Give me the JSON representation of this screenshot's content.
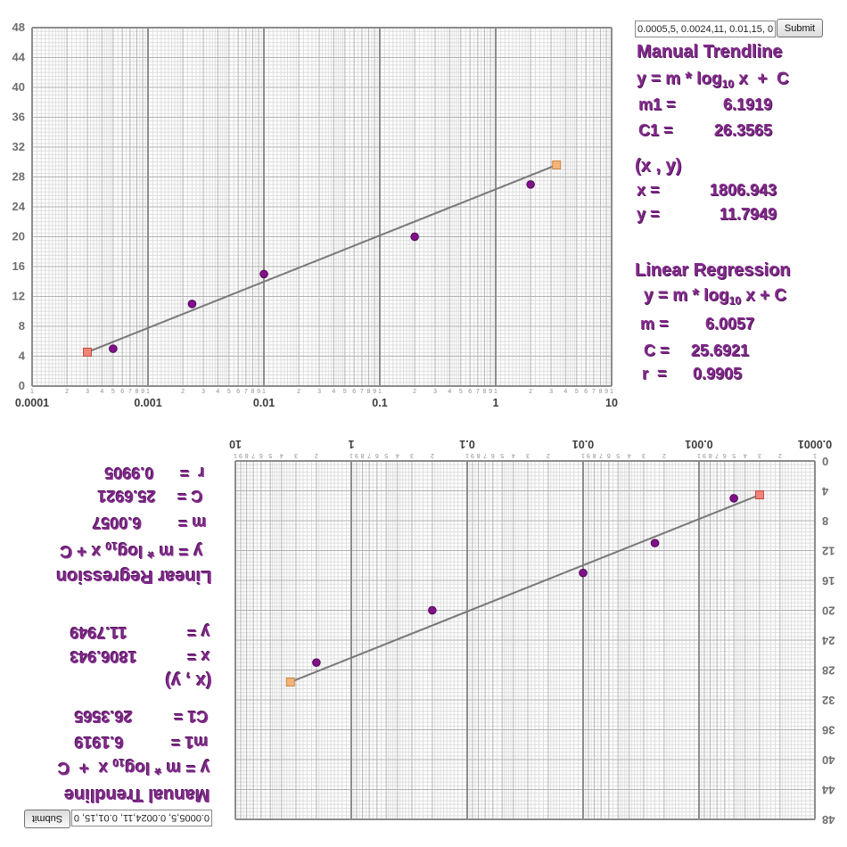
{
  "controls": {
    "input_value": "0.0005,5, 0.0024,11, 0.01,15, 0",
    "submit_label": "Submit"
  },
  "panel": {
    "manual": {
      "title": "Manual Trendline",
      "formula": {
        "pre": "y = m * log",
        "sub": "10",
        "post": " x  +  C"
      },
      "lines": [
        {
          "label": "m1 = ",
          "value": "6.1919"
        },
        {
          "label": "C1 = ",
          "value": "26.3565"
        }
      ]
    },
    "readout": {
      "title": "(x , y)",
      "lines": [
        {
          "label": "x = ",
          "value": "1806.943"
        },
        {
          "label": "y = ",
          "value": "11.7949"
        }
      ]
    },
    "regression": {
      "title": "Linear Regression",
      "formula": {
        "pre": "y = m * log",
        "sub": "10",
        "post": " x + C"
      },
      "lines": [
        {
          "label": "m = ",
          "value": "6.0057"
        },
        {
          "label": "C = ",
          "value": "25.6921"
        },
        {
          "label": "r  = ",
          "value": "0.9905"
        }
      ]
    }
  },
  "chart_data": {
    "type": "scatter",
    "x_scale": "log",
    "xlim": [
      0.0001,
      10
    ],
    "ylim": [
      0,
      48
    ],
    "y_tick_step": 4,
    "y_ticks": [
      0,
      4,
      8,
      12,
      16,
      20,
      24,
      28,
      32,
      36,
      40,
      44,
      48
    ],
    "x_decade_labels": [
      "0.0001",
      "0.001",
      "0.01",
      "0.1",
      "1",
      "10"
    ],
    "x_minor_tick_digits": [
      1,
      2,
      3,
      4,
      5,
      6,
      7,
      8,
      9
    ],
    "points": [
      [
        0.0005,
        5
      ],
      [
        0.0024,
        11
      ],
      [
        0.01,
        15
      ],
      [
        0.2,
        20
      ],
      [
        2,
        27
      ]
    ],
    "trendline": {
      "m": 6.1919,
      "C": 26.3565,
      "x_start": 0.0003,
      "x_end": 3.35
    },
    "regression": {
      "m": 6.0057,
      "C": 25.6921,
      "r": 0.9905
    },
    "grid": true,
    "colors": {
      "grid_minor": "#dedede",
      "grid_mid": "#b2b2b2",
      "grid_major": "#b2b2b2",
      "grid_decade": "#8c8c8c",
      "tick_text": "#8f8f8f",
      "decade_text": "#3d3d3d",
      "ytick_text": "#6e6e6e",
      "trendline": "#787878",
      "point": "#82108a",
      "point_border": "#4d0a54",
      "handle_start": "#ef8377",
      "handle_start_border": "#c64a42",
      "handle_end": "#f4b377",
      "handle_end_border": "#c98544",
      "panel_text": "#822b8c"
    }
  }
}
